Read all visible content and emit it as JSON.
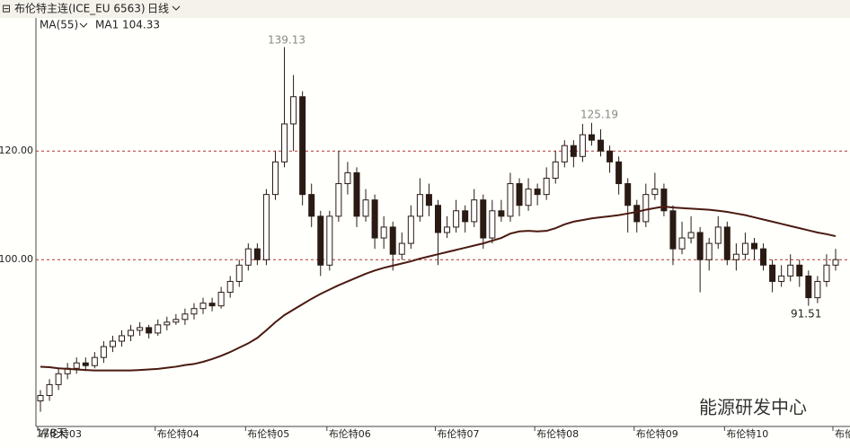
{
  "chart_data": {
    "type": "candlestick",
    "title": "布伦特主连(ICE_EU 6563)",
    "period": "日线",
    "indicator": "MA(55)",
    "ma_label": "MA1 104.33",
    "days_label": "178天",
    "watermark": "能源研发中心",
    "annotations": [
      "139.13",
      "125.19",
      "91.51"
    ],
    "ylim": [
      69.3,
      144.5
    ],
    "yticks": [
      {
        "value": 100,
        "label": "100.00"
      },
      {
        "value": 120,
        "label": "120.00"
      }
    ],
    "grid": true,
    "up_color": "#ffffff",
    "down_color": "#2a1a14",
    "ma_color": "#4a1a10",
    "xticks": [
      {
        "value": 0,
        "label": "布伦特03"
      },
      {
        "value": 13,
        "label": "布伦特04"
      },
      {
        "value": 23,
        "label": "布伦特05"
      },
      {
        "value": 32,
        "label": "布伦特06"
      },
      {
        "value": 44,
        "label": "布伦特07"
      },
      {
        "value": 55,
        "label": "布伦特08"
      },
      {
        "value": 66,
        "label": "布伦特09"
      },
      {
        "value": 76,
        "label": "布伦特10"
      },
      {
        "value": 88,
        "label": "布伦"
      }
    ],
    "ohlc": [
      [
        74,
        76,
        72,
        75
      ],
      [
        75,
        78,
        74,
        77
      ],
      [
        77,
        80,
        76,
        79
      ],
      [
        79,
        81,
        78,
        80
      ],
      [
        80,
        82,
        79,
        81
      ],
      [
        81,
        82,
        79.5,
        80.5
      ],
      [
        80.5,
        83,
        80,
        82
      ],
      [
        82,
        85,
        81,
        84
      ],
      [
        84,
        86,
        83,
        85
      ],
      [
        85,
        87,
        84,
        86
      ],
      [
        86,
        88,
        85,
        87
      ],
      [
        87,
        88.5,
        86,
        87.5
      ],
      [
        87.5,
        88,
        85.5,
        86.5
      ],
      [
        86.5,
        89,
        86,
        88
      ],
      [
        88,
        89.5,
        87,
        88.5
      ],
      [
        88.5,
        90,
        88,
        89
      ],
      [
        89,
        91,
        88,
        90
      ],
      [
        90,
        92,
        89,
        91
      ],
      [
        91,
        93,
        90,
        92
      ],
      [
        92,
        93,
        90.5,
        91.5
      ],
      [
        91.5,
        95,
        91,
        94
      ],
      [
        94,
        97,
        93,
        96
      ],
      [
        96,
        100,
        95,
        99
      ],
      [
        99,
        103,
        98,
        102
      ],
      [
        102,
        103,
        99,
        100
      ],
      [
        100,
        113,
        99,
        112
      ],
      [
        112,
        120,
        111,
        118
      ],
      [
        118,
        139.13,
        117,
        125
      ],
      [
        125,
        134,
        120,
        130
      ],
      [
        130,
        131,
        110,
        112
      ],
      [
        112,
        114,
        106,
        108
      ],
      [
        108,
        109,
        97,
        99
      ],
      [
        99,
        109,
        98,
        108
      ],
      [
        108,
        120,
        107,
        114
      ],
      [
        114,
        118,
        112,
        116
      ],
      [
        116,
        117,
        106,
        108
      ],
      [
        108,
        113,
        107,
        111
      ],
      [
        111,
        112,
        102,
        104
      ],
      [
        104,
        108,
        102,
        106
      ],
      [
        106,
        107,
        98,
        101
      ],
      [
        101,
        105,
        100,
        103
      ],
      [
        103,
        110,
        102,
        108
      ],
      [
        108,
        115,
        107,
        112
      ],
      [
        112,
        114,
        108,
        110
      ],
      [
        110,
        111,
        99,
        105
      ],
      [
        105,
        108,
        104,
        106
      ],
      [
        106,
        111,
        105,
        109
      ],
      [
        109,
        110,
        105,
        107
      ],
      [
        107,
        113,
        106,
        111
      ],
      [
        111,
        112,
        102,
        104
      ],
      [
        104,
        111,
        103,
        109
      ],
      [
        109,
        111,
        107,
        108
      ],
      [
        108,
        116,
        107,
        114
      ],
      [
        114,
        115,
        108,
        110
      ],
      [
        110,
        115,
        109,
        113
      ],
      [
        113,
        114,
        110,
        112
      ],
      [
        112,
        117,
        111,
        115
      ],
      [
        115,
        120,
        114,
        118
      ],
      [
        118,
        122,
        117,
        121
      ],
      [
        121,
        122,
        117,
        119
      ],
      [
        119,
        125,
        118,
        123
      ],
      [
        123,
        125.19,
        121,
        122
      ],
      [
        122,
        124,
        119,
        120
      ],
      [
        120,
        121,
        116,
        118
      ],
      [
        118,
        119,
        112,
        114
      ],
      [
        114,
        115,
        105,
        110
      ],
      [
        110,
        111,
        105,
        107
      ],
      [
        107,
        114,
        106,
        112
      ],
      [
        112,
        116,
        111,
        113
      ],
      [
        113,
        114,
        108,
        109
      ],
      [
        109,
        110,
        99,
        102
      ],
      [
        102,
        107,
        101,
        104
      ],
      [
        104,
        108,
        103,
        105
      ],
      [
        105,
        106,
        94,
        100
      ],
      [
        100,
        104,
        98,
        103
      ],
      [
        103,
        108,
        102,
        106
      ],
      [
        106,
        107,
        99,
        100
      ],
      [
        100,
        103,
        98,
        101
      ],
      [
        101,
        105,
        100,
        103
      ],
      [
        103,
        104,
        100,
        102
      ],
      [
        102,
        103,
        98,
        99
      ],
      [
        99,
        100,
        94,
        96
      ],
      [
        96,
        99,
        95,
        97
      ],
      [
        97,
        101,
        96,
        99
      ],
      [
        99,
        100,
        95,
        97
      ],
      [
        97,
        98,
        91.51,
        93
      ],
      [
        93,
        97,
        92,
        96
      ],
      [
        96,
        101,
        95,
        99
      ],
      [
        99,
        102,
        98,
        100
      ]
    ],
    "ma": [
      80.3,
      80.2,
      80.0,
      79.9,
      79.8,
      79.7,
      79.6,
      79.6,
      79.6,
      79.6,
      79.6,
      79.7,
      79.8,
      79.9,
      80.1,
      80.3,
      80.6,
      80.8,
      81.2,
      81.7,
      82.3,
      83.0,
      83.8,
      84.6,
      85.6,
      87.0,
      88.5,
      89.8,
      90.8,
      91.8,
      92.8,
      93.7,
      94.5,
      95.3,
      96.0,
      96.7,
      97.4,
      98.0,
      98.5,
      98.9,
      99.3,
      99.7,
      100.2,
      100.6,
      101.0,
      101.4,
      101.8,
      102.2,
      102.6,
      103.0,
      103.5,
      104.0,
      104.8,
      105.2,
      105.3,
      105.2,
      105.3,
      105.8,
      106.5,
      107.0,
      107.3,
      107.6,
      107.8,
      108.0,
      108.2,
      108.5,
      108.8,
      109.2,
      109.5,
      109.8,
      109.6,
      109.5,
      109.4,
      109.3,
      109.2,
      109.0,
      108.8,
      108.5,
      108.2,
      107.8,
      107.4,
      107.0,
      106.6,
      106.2,
      105.8,
      105.4,
      105.0,
      104.7,
      104.33
    ]
  }
}
